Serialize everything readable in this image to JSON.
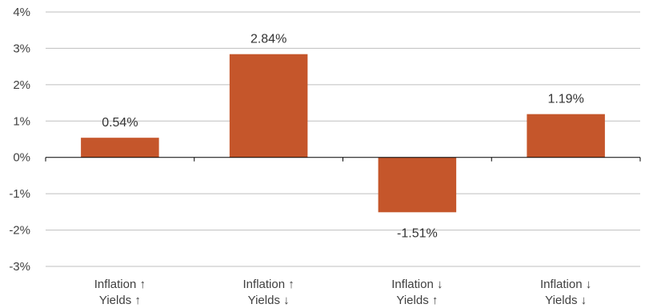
{
  "chart_data": {
    "type": "bar",
    "categories": [
      [
        "Inflation ↑",
        "Yields ↑"
      ],
      [
        "Inflation ↑",
        "Yields ↓"
      ],
      [
        "Inflation ↓",
        "Yields ↑"
      ],
      [
        "Inflation ↓",
        "Yields ↓"
      ]
    ],
    "values": [
      0.54,
      2.84,
      -1.51,
      1.19
    ],
    "value_labels": [
      "0.54%",
      "2.84%",
      "-1.51%",
      "1.19%"
    ],
    "y_ticks": [
      4,
      3,
      2,
      1,
      0,
      -1,
      -2,
      -3
    ],
    "y_tick_labels": [
      "4%",
      "3%",
      "2%",
      "1%",
      "0%",
      "-1%",
      "-2%",
      "-3%"
    ],
    "ylim": [
      -3,
      4
    ],
    "grid": true,
    "legend": "none",
    "title": "",
    "xlabel": "",
    "ylabel": "",
    "colors": {
      "bar": "#C5562B",
      "grid": "#BFBFBF",
      "axis": "#000000"
    }
  }
}
